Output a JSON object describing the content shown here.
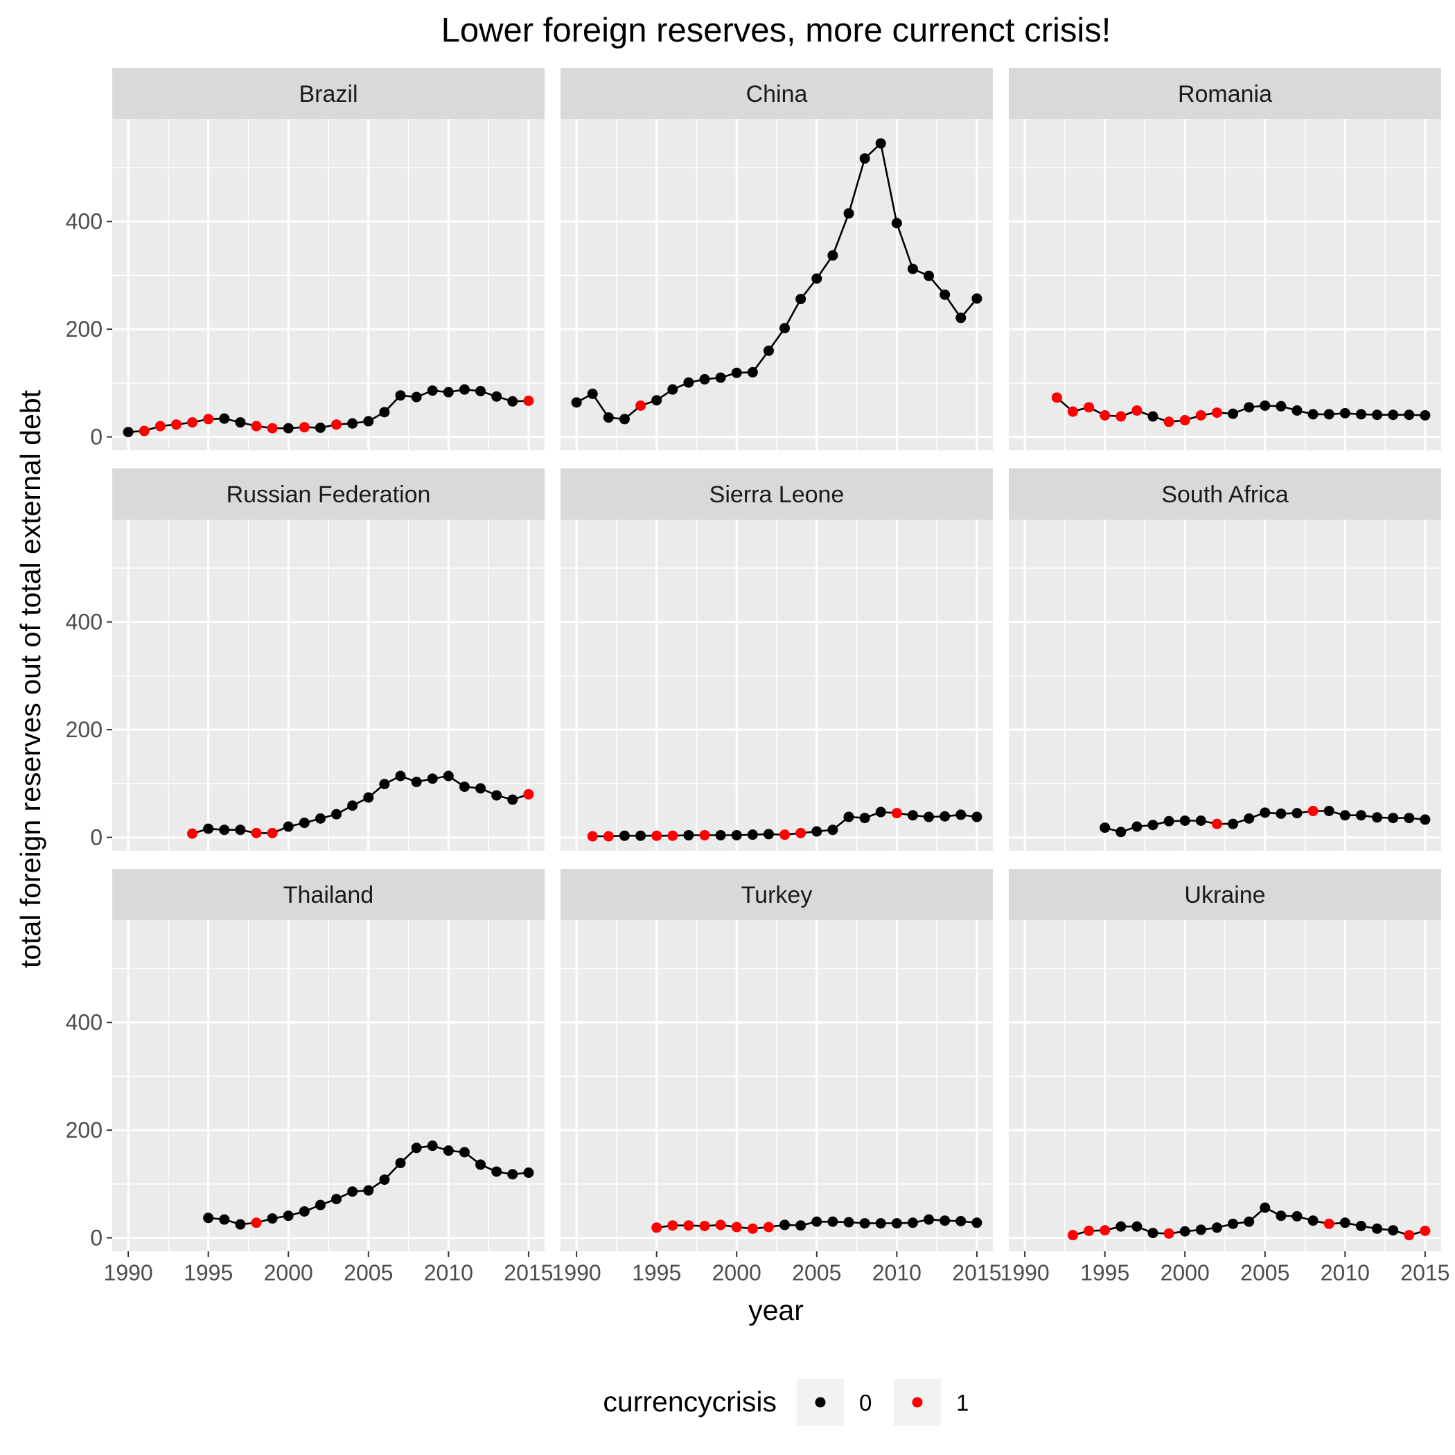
{
  "chart_data": {
    "type": "scatter",
    "title": "Lower foreign reserves, more currenct crisis!",
    "xlabel": "year",
    "ylabel": "total foreign reserves out of total external debt",
    "xlim": [
      1989,
      2016
    ],
    "ylim": [
      -25,
      590
    ],
    "x_ticks": [
      1990,
      1995,
      2000,
      2005,
      2010,
      2015
    ],
    "y_ticks": [
      0,
      200,
      400
    ],
    "grid": true,
    "legend": {
      "position": "bottom",
      "title": "currencycrisis",
      "entries": [
        {
          "label": "0",
          "color": "#000000"
        },
        {
          "label": "1",
          "color": "#ff0000"
        }
      ]
    },
    "colors": {
      "crisis_0": "#000000",
      "crisis_1": "#ff0000",
      "panel_bg": "#ebebeb",
      "strip_bg": "#d9d9d9"
    },
    "panels": [
      {
        "name": "Brazil",
        "x": [
          1990,
          1991,
          1992,
          1993,
          1994,
          1995,
          1996,
          1997,
          1998,
          1999,
          2000,
          2001,
          2002,
          2003,
          2004,
          2005,
          2006,
          2007,
          2008,
          2009,
          2010,
          2011,
          2012,
          2013,
          2014,
          2015
        ],
        "y": [
          9,
          11,
          20,
          23,
          27,
          33,
          34,
          27,
          20,
          16,
          16,
          18,
          17,
          23,
          25,
          29,
          46,
          77,
          74,
          86,
          83,
          88,
          85,
          75,
          66,
          67
        ],
        "crisis": [
          0,
          1,
          1,
          1,
          1,
          1,
          0,
          0,
          1,
          1,
          0,
          1,
          0,
          1,
          0,
          0,
          0,
          0,
          0,
          0,
          0,
          0,
          0,
          0,
          0,
          1
        ]
      },
      {
        "name": "China",
        "x": [
          1990,
          1991,
          1992,
          1993,
          1994,
          1995,
          1996,
          1997,
          1998,
          1999,
          2000,
          2001,
          2002,
          2003,
          2004,
          2005,
          2006,
          2007,
          2008,
          2009,
          2010,
          2011,
          2012,
          2013,
          2014,
          2015
        ],
        "y": [
          64,
          80,
          36,
          33,
          58,
          68,
          88,
          101,
          107,
          110,
          119,
          120,
          160,
          202,
          256,
          294,
          337,
          415,
          517,
          545,
          397,
          312,
          299,
          264,
          221,
          257
        ],
        "crisis": [
          0,
          0,
          0,
          0,
          1,
          0,
          0,
          0,
          0,
          0,
          0,
          0,
          0,
          0,
          0,
          0,
          0,
          0,
          0,
          0,
          0,
          0,
          0,
          0,
          0,
          0
        ]
      },
      {
        "name": "Romania",
        "x": [
          1992,
          1993,
          1994,
          1995,
          1996,
          1997,
          1998,
          1999,
          2000,
          2001,
          2002,
          2003,
          2004,
          2005,
          2006,
          2007,
          2008,
          2009,
          2010,
          2011,
          2012,
          2013,
          2014,
          2015
        ],
        "y": [
          73,
          47,
          55,
          40,
          38,
          49,
          38,
          28,
          31,
          40,
          45,
          43,
          55,
          58,
          57,
          49,
          42,
          42,
          44,
          42,
          41,
          41,
          41,
          40
        ],
        "crisis": [
          1,
          1,
          1,
          1,
          1,
          1,
          0,
          1,
          1,
          1,
          1,
          0,
          0,
          0,
          0,
          0,
          0,
          0,
          0,
          0,
          0,
          0,
          0,
          0
        ]
      },
      {
        "name": "Russian Federation",
        "x": [
          1994,
          1995,
          1996,
          1997,
          1998,
          1999,
          2000,
          2001,
          2002,
          2003,
          2004,
          2005,
          2006,
          2007,
          2008,
          2009,
          2010,
          2011,
          2012,
          2013,
          2014,
          2015
        ],
        "y": [
          7,
          16,
          14,
          14,
          8,
          8,
          20,
          27,
          35,
          43,
          59,
          74,
          99,
          114,
          103,
          109,
          114,
          94,
          91,
          78,
          70,
          80
        ],
        "crisis": [
          1,
          0,
          0,
          0,
          1,
          1,
          0,
          0,
          0,
          0,
          0,
          0,
          0,
          0,
          0,
          0,
          0,
          0,
          0,
          0,
          0,
          1
        ]
      },
      {
        "name": "Sierra Leone",
        "x": [
          1991,
          1992,
          1993,
          1994,
          1995,
          1996,
          1997,
          1998,
          1999,
          2000,
          2001,
          2002,
          2003,
          2004,
          2005,
          2006,
          2007,
          2008,
          2009,
          2010,
          2011,
          2012,
          2013,
          2014,
          2015
        ],
        "y": [
          2,
          2,
          3,
          3,
          3,
          3,
          4,
          4,
          4,
          4,
          5,
          6,
          5,
          8,
          11,
          14,
          38,
          36,
          47,
          45,
          41,
          38,
          39,
          42,
          38
        ],
        "crisis": [
          1,
          1,
          0,
          0,
          1,
          1,
          0,
          1,
          0,
          0,
          0,
          0,
          1,
          1,
          0,
          0,
          0,
          0,
          0,
          1,
          0,
          0,
          0,
          0,
          0
        ]
      },
      {
        "name": "South Africa",
        "x": [
          1995,
          1996,
          1997,
          1998,
          1999,
          2000,
          2001,
          2002,
          2003,
          2004,
          2005,
          2006,
          2007,
          2008,
          2009,
          2010,
          2011,
          2012,
          2013,
          2014,
          2015
        ],
        "y": [
          18,
          10,
          20,
          23,
          30,
          31,
          31,
          25,
          25,
          35,
          46,
          44,
          45,
          49,
          49,
          41,
          41,
          37,
          36,
          36,
          33
        ],
        "crisis": [
          0,
          0,
          0,
          0,
          0,
          0,
          0,
          1,
          0,
          0,
          0,
          0,
          0,
          1,
          0,
          0,
          0,
          0,
          0,
          0,
          0
        ]
      },
      {
        "name": "Thailand",
        "x": [
          1995,
          1996,
          1997,
          1998,
          1999,
          2000,
          2001,
          2002,
          2003,
          2004,
          2005,
          2006,
          2007,
          2008,
          2009,
          2010,
          2011,
          2012,
          2013,
          2014,
          2015
        ],
        "y": [
          37,
          34,
          25,
          28,
          36,
          41,
          49,
          61,
          72,
          86,
          88,
          108,
          139,
          167,
          171,
          162,
          159,
          136,
          123,
          118,
          121
        ],
        "crisis": [
          0,
          0,
          0,
          1,
          0,
          0,
          0,
          0,
          0,
          0,
          0,
          0,
          0,
          0,
          0,
          0,
          0,
          0,
          0,
          0,
          0
        ]
      },
      {
        "name": "Turkey",
        "x": [
          1995,
          1996,
          1997,
          1998,
          1999,
          2000,
          2001,
          2002,
          2003,
          2004,
          2005,
          2006,
          2007,
          2008,
          2009,
          2010,
          2011,
          2012,
          2013,
          2014,
          2015
        ],
        "y": [
          19,
          23,
          23,
          22,
          24,
          20,
          17,
          20,
          24,
          23,
          30,
          30,
          29,
          27,
          27,
          27,
          28,
          34,
          32,
          31,
          28
        ],
        "crisis": [
          1,
          1,
          1,
          1,
          1,
          1,
          1,
          1,
          0,
          0,
          0,
          0,
          0,
          0,
          0,
          0,
          0,
          0,
          0,
          0,
          0
        ]
      },
      {
        "name": "Ukraine",
        "x": [
          1993,
          1994,
          1995,
          1996,
          1997,
          1998,
          1999,
          2000,
          2001,
          2002,
          2003,
          2004,
          2005,
          2006,
          2007,
          2008,
          2009,
          2010,
          2011,
          2012,
          2013,
          2014,
          2015
        ],
        "y": [
          5,
          13,
          14,
          21,
          21,
          9,
          8,
          12,
          15,
          19,
          26,
          30,
          56,
          41,
          40,
          32,
          26,
          28,
          22,
          17,
          14,
          5,
          13
        ],
        "crisis": [
          1,
          1,
          1,
          0,
          0,
          0,
          1,
          0,
          0,
          0,
          0,
          0,
          0,
          0,
          0,
          0,
          1,
          0,
          0,
          0,
          0,
          1,
          1
        ]
      }
    ]
  }
}
